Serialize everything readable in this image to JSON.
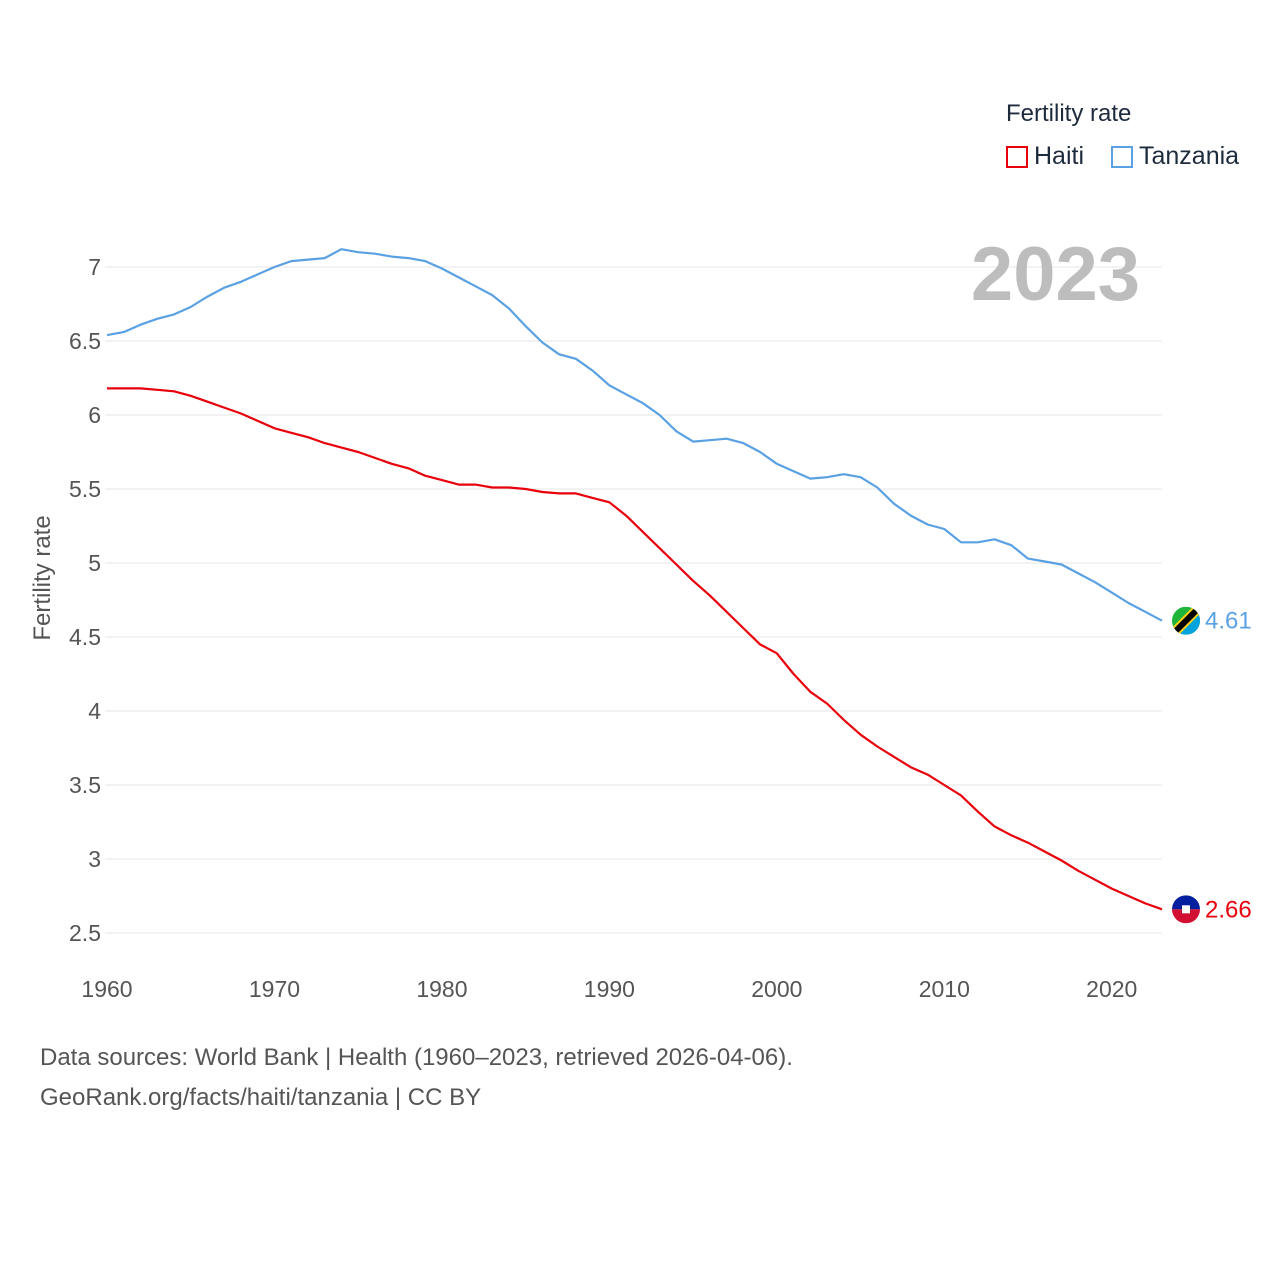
{
  "chart_data": {
    "type": "line",
    "title": "Fertility rate",
    "year_label": "2023",
    "ylabel": "Fertility rate",
    "xlabel": "",
    "xlim": [
      1960,
      2023
    ],
    "ylim": [
      2.3,
      7.2
    ],
    "yticks": [
      2.5,
      3,
      3.5,
      4,
      4.5,
      5,
      5.5,
      6,
      6.5,
      7
    ],
    "ytick_labels": [
      "2.5",
      "3",
      "3.5",
      "4",
      "4.5",
      "5",
      "5.5",
      "6",
      "6.5",
      "7"
    ],
    "xticks": [
      1960,
      1970,
      1980,
      1990,
      2000,
      2010,
      2020
    ],
    "xtick_labels": [
      "1960",
      "1970",
      "1980",
      "1990",
      "2000",
      "2010",
      "2020"
    ],
    "grid": true,
    "legend_position": "top-right",
    "x": [
      1960,
      1961,
      1962,
      1963,
      1964,
      1965,
      1966,
      1967,
      1968,
      1969,
      1970,
      1971,
      1972,
      1973,
      1974,
      1975,
      1976,
      1977,
      1978,
      1979,
      1980,
      1981,
      1982,
      1983,
      1984,
      1985,
      1986,
      1987,
      1988,
      1989,
      1990,
      1991,
      1992,
      1993,
      1994,
      1995,
      1996,
      1997,
      1998,
      1999,
      2000,
      2001,
      2002,
      2003,
      2004,
      2005,
      2006,
      2007,
      2008,
      2009,
      2010,
      2011,
      2012,
      2013,
      2014,
      2015,
      2016,
      2017,
      2018,
      2019,
      2020,
      2021,
      2022,
      2023
    ],
    "series": [
      {
        "name": "Haiti",
        "color": "#e8000b",
        "end_label": "2.66",
        "values": [
          6.18,
          6.18,
          6.18,
          6.17,
          6.16,
          6.13,
          6.09,
          6.05,
          6.01,
          5.96,
          5.91,
          5.88,
          5.85,
          5.81,
          5.78,
          5.75,
          5.71,
          5.67,
          5.64,
          5.59,
          5.56,
          5.53,
          5.53,
          5.51,
          5.51,
          5.5,
          5.48,
          5.47,
          5.47,
          5.44,
          5.41,
          5.32,
          5.21,
          5.1,
          4.99,
          4.88,
          4.78,
          4.67,
          4.56,
          4.45,
          4.39,
          4.25,
          4.13,
          4.05,
          3.94,
          3.84,
          3.76,
          3.69,
          3.62,
          3.57,
          3.5,
          3.43,
          3.32,
          3.22,
          3.16,
          3.11,
          3.05,
          2.99,
          2.92,
          2.86,
          2.8,
          2.75,
          2.7,
          2.66
        ]
      },
      {
        "name": "Tanzania",
        "color": "#5aa1e3",
        "end_label": "4.61",
        "values": [
          6.54,
          6.56,
          6.61,
          6.65,
          6.68,
          6.73,
          6.8,
          6.86,
          6.9,
          6.95,
          7.0,
          7.04,
          7.05,
          7.06,
          7.12,
          7.1,
          7.09,
          7.07,
          7.06,
          7.04,
          6.99,
          6.93,
          6.87,
          6.81,
          6.72,
          6.6,
          6.49,
          6.41,
          6.38,
          6.3,
          6.2,
          6.14,
          6.08,
          6.0,
          5.89,
          5.82,
          5.83,
          5.84,
          5.81,
          5.75,
          5.67,
          5.62,
          5.57,
          5.58,
          5.6,
          5.58,
          5.51,
          5.4,
          5.32,
          5.26,
          5.23,
          5.14,
          5.14,
          5.16,
          5.12,
          5.03,
          5.01,
          4.99,
          4.93,
          4.87,
          4.8,
          4.73,
          4.67,
          4.61
        ]
      }
    ]
  },
  "footer": {
    "line1": "Data sources: World Bank | Health (1960–2023, retrieved 2026-04-06).",
    "line2": "GeoRank.org/facts/haiti/tanzania | CC BY"
  }
}
